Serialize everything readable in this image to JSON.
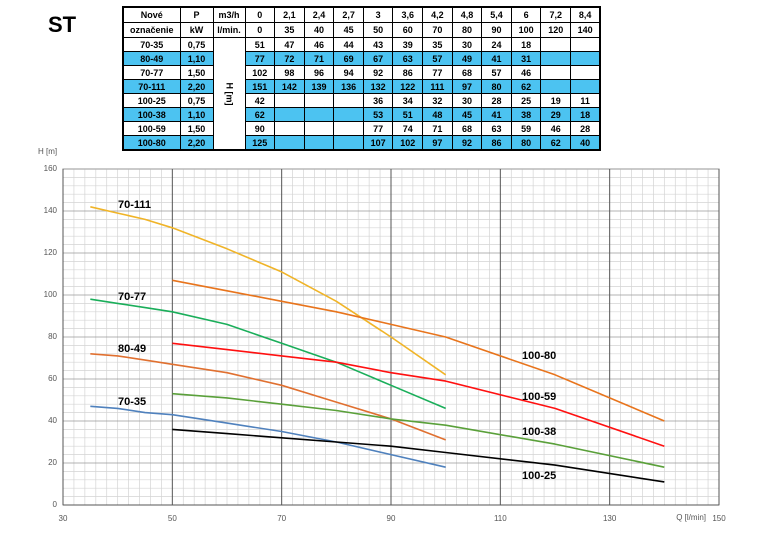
{
  "title": "ST",
  "table": {
    "header": [
      [
        "Nové",
        "P",
        "m3/h",
        "0",
        "2,1",
        "2,4",
        "2,7",
        "3",
        "3,6",
        "4,2",
        "4,8",
        "5,4",
        "6",
        "7,2",
        "8,4"
      ],
      [
        "označenie",
        "kW",
        "l/min.",
        "0",
        "35",
        "40",
        "45",
        "50",
        "60",
        "70",
        "80",
        "90",
        "100",
        "120",
        "140"
      ]
    ],
    "h_label": "H [m]",
    "highlight_color": "#4cc3f1",
    "rows": [
      {
        "name": "70-35",
        "power": "0,75",
        "highlight": false,
        "values": [
          51,
          47,
          46,
          44,
          43,
          39,
          35,
          30,
          24,
          18,
          null,
          null
        ]
      },
      {
        "name": "80-49",
        "power": "1,10",
        "highlight": true,
        "values": [
          77,
          72,
          71,
          69,
          67,
          63,
          57,
          49,
          41,
          31,
          null,
          null
        ]
      },
      {
        "name": "70-77",
        "power": "1,50",
        "highlight": false,
        "values": [
          102,
          98,
          96,
          94,
          92,
          86,
          77,
          68,
          57,
          46,
          null,
          null
        ]
      },
      {
        "name": "70-111",
        "power": "2,20",
        "highlight": true,
        "values": [
          151,
          142,
          139,
          136,
          132,
          122,
          111,
          97,
          80,
          62,
          null,
          null
        ]
      },
      {
        "name": "100-25",
        "power": "0,75",
        "highlight": false,
        "values": [
          42,
          null,
          null,
          null,
          36,
          34,
          32,
          30,
          28,
          25,
          19,
          11
        ]
      },
      {
        "name": "100-38",
        "power": "1,10",
        "highlight": true,
        "values": [
          62,
          null,
          null,
          null,
          53,
          51,
          48,
          45,
          41,
          38,
          29,
          18
        ]
      },
      {
        "name": "100-59",
        "power": "1,50",
        "highlight": false,
        "values": [
          90,
          null,
          null,
          null,
          77,
          74,
          71,
          68,
          63,
          59,
          46,
          28
        ]
      },
      {
        "name": "100-80",
        "power": "2,20",
        "highlight": true,
        "values": [
          125,
          null,
          null,
          null,
          107,
          102,
          97,
          92,
          86,
          80,
          62,
          40
        ]
      }
    ]
  },
  "chart_data": {
    "type": "line",
    "x_label": "Q [l/min]",
    "y_label": "H [m]",
    "xlim": [
      30,
      150
    ],
    "ylim": [
      0,
      160
    ],
    "xticks": [
      30,
      50,
      70,
      90,
      110,
      130,
      150
    ],
    "yticks": [
      0,
      20,
      40,
      60,
      80,
      100,
      120,
      140,
      160
    ],
    "grid": true,
    "series": [
      {
        "name": "70-35",
        "color": "#4f81bd",
        "x": [
          35,
          40,
          45,
          50,
          60,
          70,
          80,
          90,
          100
        ],
        "values": [
          47,
          46,
          44,
          43,
          39,
          35,
          30,
          24,
          18
        ]
      },
      {
        "name": "80-49",
        "color": "#e07030",
        "x": [
          35,
          40,
          45,
          50,
          60,
          70,
          80,
          90,
          100
        ],
        "values": [
          72,
          71,
          69,
          67,
          63,
          57,
          49,
          41,
          31
        ]
      },
      {
        "name": "70-77",
        "color": "#1aae5a",
        "x": [
          35,
          40,
          45,
          50,
          60,
          70,
          80,
          90,
          100
        ],
        "values": [
          98,
          96,
          94,
          92,
          86,
          77,
          68,
          57,
          46
        ]
      },
      {
        "name": "70-111",
        "color": "#f0b428",
        "x": [
          35,
          40,
          45,
          50,
          60,
          70,
          80,
          90,
          100
        ],
        "values": [
          142,
          139,
          136,
          132,
          122,
          111,
          97,
          80,
          62
        ]
      },
      {
        "name": "100-25",
        "color": "#000000",
        "x": [
          50,
          60,
          70,
          80,
          90,
          100,
          120,
          140
        ],
        "values": [
          36,
          34,
          32,
          30,
          28,
          25,
          19,
          11
        ]
      },
      {
        "name": "100-38",
        "color": "#5aa03a",
        "x": [
          50,
          60,
          70,
          80,
          90,
          100,
          120,
          140
        ],
        "values": [
          53,
          51,
          48,
          45,
          41,
          38,
          29,
          18
        ]
      },
      {
        "name": "100-59",
        "color": "#ff1010",
        "x": [
          50,
          60,
          70,
          80,
          90,
          100,
          120,
          140
        ],
        "values": [
          77,
          74,
          71,
          68,
          63,
          59,
          46,
          28
        ]
      },
      {
        "name": "100-80",
        "color": "#e8741c",
        "x": [
          50,
          60,
          70,
          80,
          90,
          100,
          120,
          140
        ],
        "values": [
          107,
          102,
          97,
          92,
          86,
          80,
          62,
          40
        ]
      }
    ]
  }
}
